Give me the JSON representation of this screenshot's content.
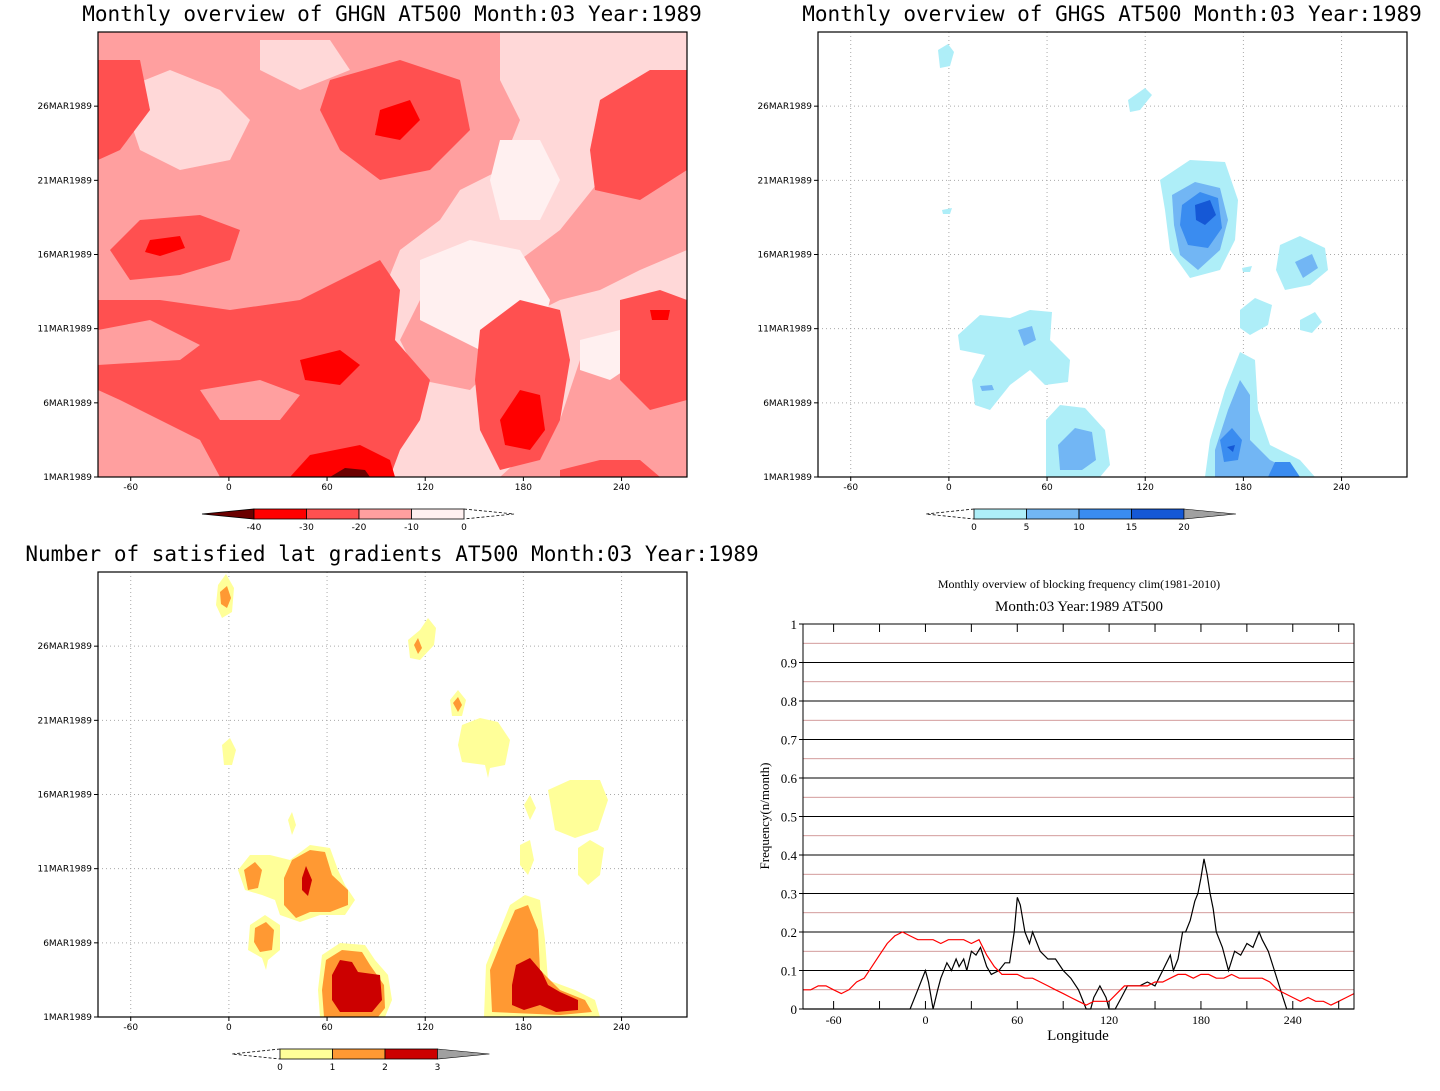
{
  "chart_data": [
    {
      "type": "heatmap",
      "title": "Monthly overview of GHGN AT500 Month:03 Year:1989",
      "x_ticks": [
        "-60",
        "0",
        "60",
        "120",
        "180",
        "240"
      ],
      "y_ticks": [
        "1MAR1989",
        "6MAR1989",
        "11MAR1989",
        "16MAR1989",
        "21MAR1989",
        "26MAR1989"
      ],
      "xlim": [
        -80,
        280
      ],
      "colorbar": {
        "ticks": [
          "-40",
          "-30",
          "-20",
          "-10",
          "0"
        ],
        "colors": [
          "#6b0000",
          "#ff0000",
          "#ff5050",
          "#ff9f9f",
          "#fff0f0"
        ]
      },
      "colors": {
        "base": "#ff9f9f",
        "light": "#ffd8d8",
        "lighter": "#fff0f0",
        "mid": "#ff5050",
        "dark": "#ff0000",
        "darkest": "#6b0000"
      }
    },
    {
      "type": "heatmap",
      "title": "Monthly overview of GHGS AT500 Month:03 Year:1989",
      "x_ticks": [
        "-60",
        "0",
        "60",
        "120",
        "180",
        "240"
      ],
      "y_ticks": [
        "1MAR1989",
        "6MAR1989",
        "11MAR1989",
        "16MAR1989",
        "21MAR1989",
        "26MAR1989"
      ],
      "xlim": [
        -80,
        280
      ],
      "colorbar": {
        "ticks": [
          "0",
          "5",
          "10",
          "15",
          "20"
        ],
        "colors": [
          "#aeeef8",
          "#72b6f4",
          "#3a8cf0",
          "#1558d6",
          "#a0a0a0"
        ]
      },
      "colors": {
        "c1": "#aeeef8",
        "c2": "#72b6f4",
        "c3": "#3a8cf0",
        "c4": "#1558d6"
      }
    },
    {
      "type": "heatmap",
      "title": "Number of satisfied lat gradients AT500 Month:03 Year:1989",
      "x_ticks": [
        "-60",
        "0",
        "60",
        "120",
        "180",
        "240"
      ],
      "y_ticks": [
        "1MAR1989",
        "6MAR1989",
        "11MAR1989",
        "16MAR1989",
        "21MAR1989",
        "26MAR1989"
      ],
      "xlim": [
        -80,
        280
      ],
      "colorbar": {
        "ticks": [
          "0",
          "1",
          "2",
          "3"
        ],
        "colors": [
          "#ffff99",
          "#ff9933",
          "#cc0000",
          "#a0a0a0"
        ]
      },
      "colors": {
        "c1": "#ffff99",
        "c2": "#ff9933",
        "c3": "#cc0000"
      }
    },
    {
      "type": "line",
      "title": "Monthly overview of blocking frequency clim(1981-2010)",
      "subtitle": "Month:03 Year:1989  AT500",
      "xlabel": "Longitude",
      "ylabel": "Frequency(n/month)",
      "xlim": [
        -80,
        280
      ],
      "ylim": [
        0,
        1
      ],
      "x_ticks": [
        -60,
        0,
        60,
        120,
        180,
        240
      ],
      "y_ticks": [
        0,
        0.1,
        0.2,
        0.3,
        0.4,
        0.5,
        0.6,
        0.7,
        0.8,
        0.9,
        1
      ],
      "y_tick_labels": [
        "0",
        "0.1",
        "0.2",
        "0.3",
        "0.4",
        "0.5",
        "0.6",
        "0.7",
        "0.8",
        "0.9",
        "1"
      ],
      "x_tick_labels": [
        "-60",
        "0",
        "60",
        "120",
        "180",
        "240"
      ],
      "grid": true,
      "series": [
        {
          "color": "#000000",
          "x": [
            -80,
            -10,
            -5,
            0,
            2,
            5,
            8,
            10,
            14,
            17,
            20,
            22,
            25,
            27,
            30,
            33,
            36,
            40,
            43,
            48,
            52,
            55,
            58,
            60,
            62,
            65,
            68,
            70,
            75,
            80,
            85,
            90,
            95,
            100,
            105,
            108,
            110,
            114,
            118,
            120,
            124,
            128,
            132,
            136,
            140,
            145,
            150,
            155,
            160,
            162,
            165,
            168,
            170,
            173,
            176,
            178,
            180,
            182,
            184,
            186,
            188,
            190,
            194,
            198,
            202,
            206,
            210,
            214,
            218,
            220,
            224,
            228,
            232,
            236,
            240,
            280
          ],
          "y": [
            0,
            0,
            0.05,
            0.1,
            0.07,
            0,
            0.05,
            0.08,
            0.12,
            0.1,
            0.13,
            0.11,
            0.13,
            0.1,
            0.15,
            0.14,
            0.16,
            0.11,
            0.09,
            0.1,
            0.12,
            0.12,
            0.2,
            0.29,
            0.27,
            0.2,
            0.17,
            0.2,
            0.15,
            0.13,
            0.13,
            0.1,
            0.08,
            0.05,
            0,
            0,
            0.03,
            0.06,
            0.03,
            0,
            0,
            0.03,
            0.06,
            0.06,
            0.06,
            0.07,
            0.06,
            0.1,
            0.14,
            0.1,
            0.13,
            0.2,
            0.2,
            0.23,
            0.28,
            0.3,
            0.34,
            0.39,
            0.35,
            0.3,
            0.26,
            0.2,
            0.16,
            0.1,
            0.15,
            0.14,
            0.17,
            0.16,
            0.2,
            0.18,
            0.15,
            0.1,
            0.05,
            0,
            0,
            0
          ]
        },
        {
          "color": "#ff0000",
          "x": [
            -80,
            -75,
            -70,
            -65,
            -60,
            -55,
            -50,
            -45,
            -40,
            -35,
            -30,
            -25,
            -20,
            -15,
            -10,
            -5,
            0,
            5,
            10,
            15,
            20,
            25,
            30,
            35,
            40,
            45,
            50,
            55,
            60,
            65,
            70,
            75,
            80,
            85,
            90,
            95,
            100,
            105,
            110,
            115,
            120,
            125,
            130,
            135,
            140,
            145,
            150,
            155,
            160,
            165,
            170,
            175,
            180,
            185,
            190,
            195,
            200,
            205,
            210,
            215,
            220,
            225,
            230,
            235,
            240,
            245,
            250,
            255,
            260,
            265,
            270,
            275,
            280
          ],
          "y": [
            0.05,
            0.05,
            0.06,
            0.06,
            0.05,
            0.04,
            0.05,
            0.07,
            0.08,
            0.11,
            0.14,
            0.17,
            0.19,
            0.2,
            0.19,
            0.18,
            0.18,
            0.18,
            0.17,
            0.18,
            0.18,
            0.18,
            0.17,
            0.18,
            0.14,
            0.11,
            0.09,
            0.09,
            0.09,
            0.08,
            0.08,
            0.07,
            0.06,
            0.05,
            0.04,
            0.03,
            0.02,
            0.01,
            0.02,
            0.02,
            0.02,
            0.04,
            0.06,
            0.06,
            0.06,
            0.06,
            0.07,
            0.07,
            0.08,
            0.09,
            0.09,
            0.08,
            0.09,
            0.09,
            0.08,
            0.08,
            0.09,
            0.08,
            0.08,
            0.08,
            0.08,
            0.07,
            0.05,
            0.04,
            0.03,
            0.02,
            0.03,
            0.02,
            0.02,
            0.01,
            0.02,
            0.03,
            0.04
          ]
        }
      ]
    }
  ]
}
